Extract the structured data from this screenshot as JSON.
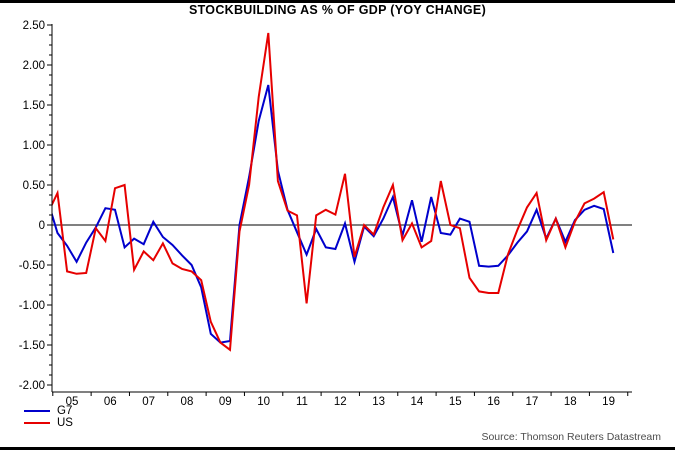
{
  "chart_data": {
    "type": "line",
    "title": "STOCKBUILDING AS % OF GDP (YOY CHANGE)",
    "source": "Source: Thomson Reuters Datastream",
    "x_years": [
      "05",
      "06",
      "07",
      "08",
      "09",
      "10",
      "11",
      "12",
      "13",
      "14",
      "15",
      "16",
      "17",
      "18",
      "19"
    ],
    "x_frequency": "quarterly",
    "x_first_point": "2004Q4",
    "x_last_point": "2019Q3",
    "ylim": [
      -2.0,
      2.5
    ],
    "ytick_labels": [
      "2.50",
      "2.00",
      "1.50",
      "1.00",
      "0.50",
      "0",
      "-0.50",
      "-1.00",
      "-1.50",
      "-2.00"
    ],
    "ytick_values": [
      2.5,
      2.0,
      1.5,
      1.0,
      0.5,
      0,
      -0.5,
      -1.0,
      -1.5,
      -2.0
    ],
    "yminor_step": 0.125,
    "zero_line": true,
    "grid": false,
    "legend_position": "bottom-left",
    "axis_color": "#000000",
    "series": [
      {
        "name": "G7",
        "color": "#0000CC",
        "values": [
          0.3,
          -0.1,
          -0.26,
          -0.46,
          -0.22,
          -0.03,
          0.21,
          0.19,
          -0.28,
          -0.17,
          -0.24,
          0.04,
          -0.15,
          -0.25,
          -0.38,
          -0.5,
          -0.78,
          -1.36,
          -1.47,
          -1.45,
          0.0,
          0.6,
          1.3,
          1.75,
          0.68,
          0.19,
          -0.09,
          -0.37,
          -0.05,
          -0.28,
          -0.3,
          0.02,
          -0.46,
          -0.02,
          -0.14,
          0.08,
          0.35,
          -0.13,
          0.31,
          -0.21,
          0.35,
          -0.1,
          -0.12,
          0.08,
          0.04,
          -0.51,
          -0.52,
          -0.51,
          -0.38,
          -0.22,
          -0.08,
          0.19,
          -0.17,
          0.08,
          -0.21,
          0.06,
          0.19,
          0.24,
          0.2,
          -0.35
        ]
      },
      {
        "name": "US",
        "color": "#E60000",
        "values": [
          0.15,
          0.4,
          -0.58,
          -0.61,
          -0.6,
          -0.04,
          -0.2,
          0.46,
          0.5,
          -0.56,
          -0.33,
          -0.44,
          -0.23,
          -0.48,
          -0.55,
          -0.58,
          -0.69,
          -1.21,
          -1.47,
          -1.56,
          -0.08,
          0.5,
          1.6,
          2.4,
          0.55,
          0.18,
          0.12,
          -0.98,
          0.12,
          0.19,
          0.13,
          0.64,
          -0.4,
          0.0,
          -0.12,
          0.22,
          0.5,
          -0.19,
          0.02,
          -0.28,
          -0.2,
          0.55,
          0.0,
          -0.04,
          -0.66,
          -0.83,
          -0.85,
          -0.85,
          -0.37,
          -0.06,
          0.22,
          0.4,
          -0.19,
          0.08,
          -0.28,
          0.04,
          0.27,
          0.33,
          0.41,
          -0.18
        ]
      }
    ]
  }
}
